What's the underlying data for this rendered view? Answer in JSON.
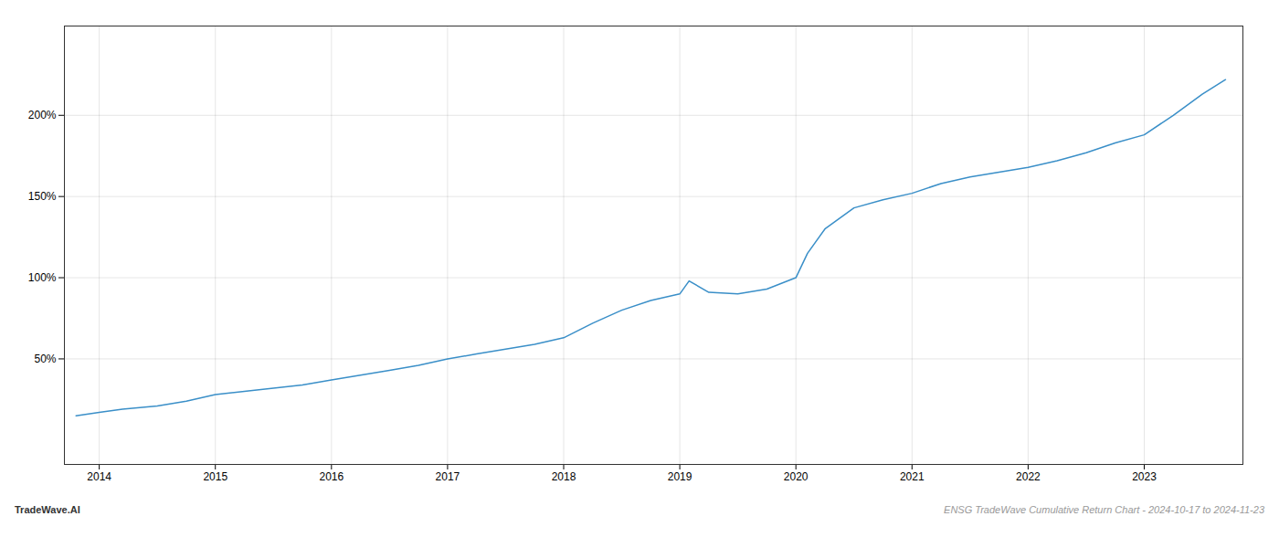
{
  "chart_data": {
    "type": "line",
    "title": "ENSG TradeWave Cumulative Return Chart - 2024-10-17 to 2024-11-23",
    "annotations": [
      "TradeWave.AI"
    ],
    "x": [
      2013.8,
      2014.0,
      2014.2,
      2014.5,
      2014.75,
      2015.0,
      2015.25,
      2015.5,
      2015.75,
      2016.0,
      2016.25,
      2016.5,
      2016.75,
      2017.0,
      2017.25,
      2017.5,
      2017.75,
      2018.0,
      2018.25,
      2018.5,
      2018.75,
      2019.0,
      2019.08,
      2019.25,
      2019.5,
      2019.75,
      2020.0,
      2020.1,
      2020.25,
      2020.5,
      2020.75,
      2021.0,
      2021.25,
      2021.5,
      2021.75,
      2022.0,
      2022.25,
      2022.5,
      2022.75,
      2023.0,
      2023.25,
      2023.5,
      2023.7
    ],
    "values": [
      15,
      17,
      19,
      21,
      24,
      28,
      30,
      32,
      34,
      37,
      40,
      43,
      46,
      50,
      53,
      56,
      59,
      63,
      72,
      80,
      86,
      90,
      98,
      91,
      90,
      93,
      100,
      115,
      130,
      143,
      148,
      152,
      158,
      162,
      165,
      168,
      172,
      177,
      183,
      188,
      200,
      213,
      222
    ],
    "color": "#3a8fc8",
    "xlim": [
      2013.7,
      2023.85
    ],
    "xticks": [
      2014,
      2015,
      2016,
      2017,
      2018,
      2019,
      2020,
      2021,
      2022,
      2023
    ],
    "ylim": [
      -15,
      255
    ],
    "yticks": [
      {
        "value": 50,
        "label": "50%"
      },
      {
        "value": 100,
        "label": "100%"
      },
      {
        "value": 150,
        "label": "150%"
      },
      {
        "value": 200,
        "label": "200%"
      }
    ],
    "grid": true
  }
}
